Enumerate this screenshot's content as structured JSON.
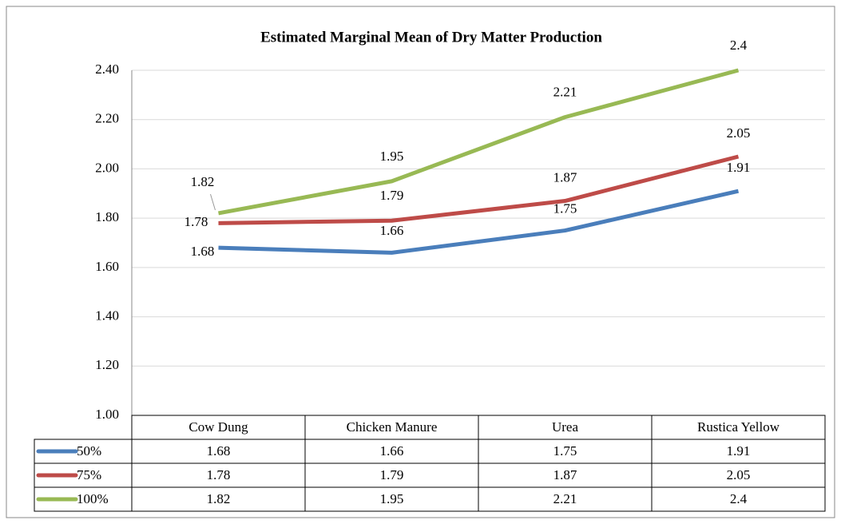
{
  "chart_data": {
    "type": "line",
    "title": "Estimated Marginal Mean of Dry Matter Production",
    "categories": [
      "Cow Dung",
      "Chicken Manure",
      "Urea",
      "Rustica Yellow"
    ],
    "series": [
      {
        "name": "50%",
        "color": "#4a7ebb",
        "values": [
          1.68,
          1.66,
          1.75,
          1.91
        ]
      },
      {
        "name": "75%",
        "color": "#be4b48",
        "values": [
          1.78,
          1.79,
          1.87,
          2.05
        ]
      },
      {
        "name": "100%",
        "color": "#98b954",
        "values": [
          1.82,
          1.95,
          2.21,
          2.4
        ]
      }
    ],
    "ylim": [
      1.0,
      2.4
    ],
    "yticks": [
      {
        "value": 1.0,
        "label": "1.00"
      },
      {
        "value": 1.2,
        "label": "1.20"
      },
      {
        "value": 1.4,
        "label": "1.40"
      },
      {
        "value": 1.6,
        "label": "1.60"
      },
      {
        "value": 1.8,
        "label": "1.80"
      },
      {
        "value": 2.0,
        "label": "2.00"
      },
      {
        "value": 2.2,
        "label": "2.20"
      },
      {
        "value": 2.4,
        "label": "2.40"
      }
    ],
    "grid": true,
    "data_table": true
  }
}
